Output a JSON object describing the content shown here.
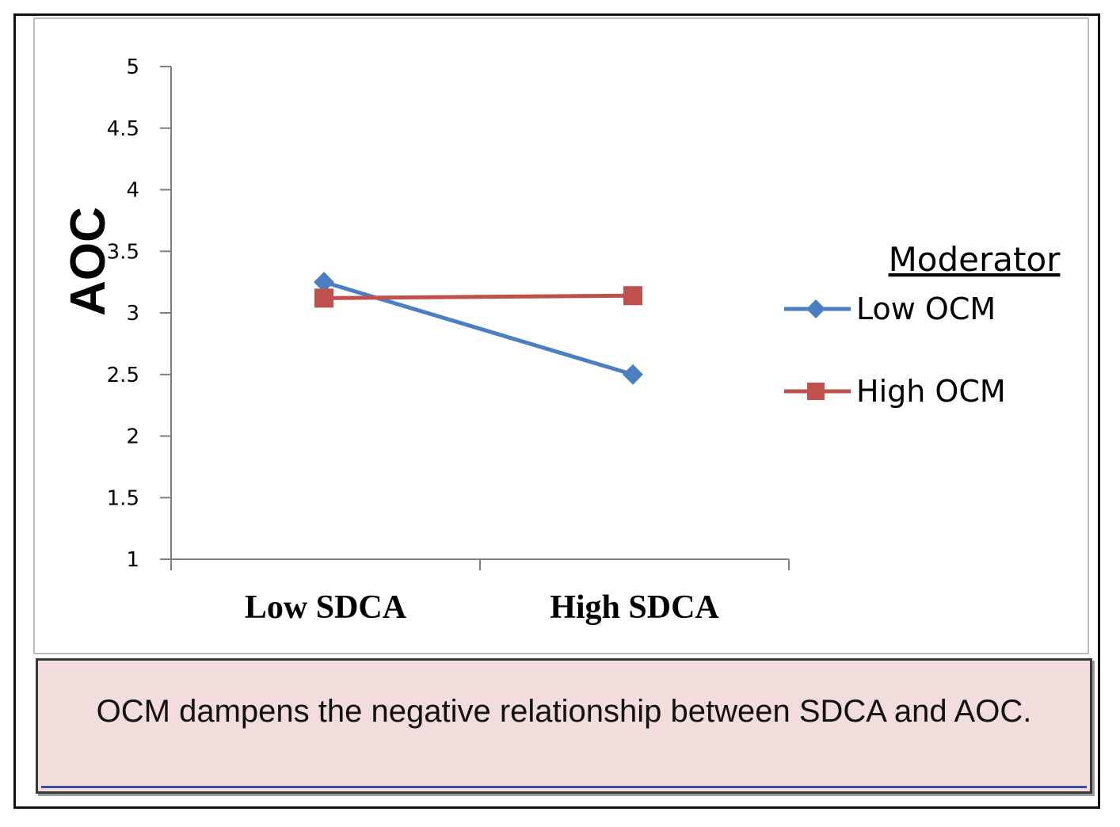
{
  "chart_data": {
    "type": "line",
    "ylabel": "AOC",
    "xlabel": "",
    "title": "",
    "categories": [
      "Low SDCA",
      "High SDCA"
    ],
    "ylim": [
      1,
      5
    ],
    "yticks": [
      "1",
      "1.5",
      "2",
      "2.5",
      "3",
      "3.5",
      "4",
      "4.5",
      "5"
    ],
    "legend_title": "Moderator",
    "legend_position": "right",
    "series": [
      {
        "name": "Low OCM",
        "values": [
          3.25,
          2.5
        ],
        "color": "#4a7fc1",
        "marker": "diamond"
      },
      {
        "name": "High OCM",
        "values": [
          3.12,
          3.14
        ],
        "color": "#c0504d",
        "marker": "square"
      }
    ]
  },
  "caption": "OCM dampens the negative relationship between SDCA and AOC."
}
